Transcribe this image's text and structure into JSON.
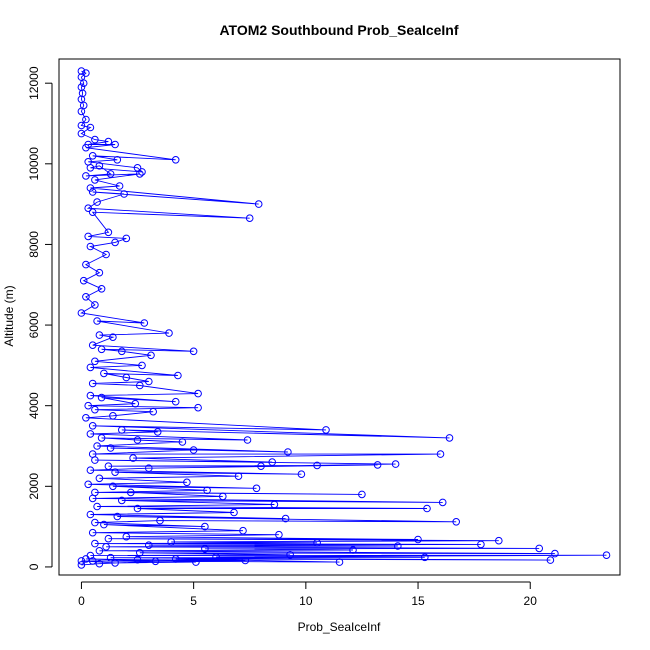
{
  "chart_data": {
    "type": "line",
    "title": "ATOM2 Southbound Prob_SeaIceInf",
    "xlabel": "Prob_SeaIceInf",
    "ylabel": "Altitude (m)",
    "xlim": [
      -1.0,
      24.0
    ],
    "ylim": [
      -200,
      12600
    ],
    "x_ticks": [
      0,
      5,
      10,
      15,
      20
    ],
    "y_ticks": [
      0,
      2000,
      4000,
      6000,
      8000,
      10000,
      12000
    ],
    "grid": false,
    "legend": "none",
    "marker": "open-circle",
    "series": [
      {
        "points": [
          [
            0.0,
            12300
          ],
          [
            0.2,
            12250
          ],
          [
            0.0,
            12150
          ],
          [
            0.1,
            12000
          ],
          [
            0.0,
            11900
          ],
          [
            0.05,
            11750
          ],
          [
            0.0,
            11600
          ],
          [
            0.1,
            11450
          ],
          [
            0.0,
            11300
          ],
          [
            0.2,
            11100
          ],
          [
            0.0,
            10950
          ],
          [
            0.4,
            10900
          ],
          [
            0.0,
            10750
          ],
          [
            0.6,
            10600
          ],
          [
            1.2,
            10550
          ],
          [
            0.3,
            10480
          ],
          [
            1.5,
            10480
          ],
          [
            0.2,
            10400
          ],
          [
            4.2,
            10100
          ],
          [
            0.5,
            10200
          ],
          [
            1.6,
            10100
          ],
          [
            0.3,
            10050
          ],
          [
            2.5,
            9900
          ],
          [
            2.7,
            9800
          ],
          [
            0.4,
            9900
          ],
          [
            0.8,
            9950
          ],
          [
            1.3,
            9750
          ],
          [
            0.2,
            9700
          ],
          [
            2.6,
            9750
          ],
          [
            0.6,
            9600
          ],
          [
            1.7,
            9450
          ],
          [
            0.4,
            9400
          ],
          [
            7.9,
            9000
          ],
          [
            0.5,
            9300
          ],
          [
            1.9,
            9250
          ],
          [
            0.7,
            9050
          ],
          [
            0.3,
            8900
          ],
          [
            7.5,
            8650
          ],
          [
            0.5,
            8800
          ],
          [
            1.2,
            8300
          ],
          [
            0.3,
            8200
          ],
          [
            2.0,
            8150
          ],
          [
            1.5,
            8050
          ],
          [
            0.4,
            7950
          ],
          [
            1.1,
            7750
          ],
          [
            0.2,
            7500
          ],
          [
            0.8,
            7300
          ],
          [
            0.1,
            7100
          ],
          [
            0.9,
            6900
          ],
          [
            0.2,
            6700
          ],
          [
            0.6,
            6500
          ],
          [
            0.0,
            6300
          ],
          [
            2.8,
            6050
          ],
          [
            0.7,
            6100
          ],
          [
            3.9,
            5800
          ],
          [
            0.8,
            5750
          ],
          [
            1.4,
            5700
          ],
          [
            0.5,
            5500
          ],
          [
            5.0,
            5350
          ],
          [
            0.9,
            5400
          ],
          [
            1.8,
            5350
          ],
          [
            3.1,
            5250
          ],
          [
            0.6,
            5100
          ],
          [
            2.7,
            5000
          ],
          [
            0.4,
            4950
          ],
          [
            4.3,
            4750
          ],
          [
            1.0,
            4800
          ],
          [
            2.0,
            4700
          ],
          [
            3.0,
            4600
          ],
          [
            0.5,
            4550
          ],
          [
            2.6,
            4500
          ],
          [
            5.2,
            4300
          ],
          [
            0.4,
            4250
          ],
          [
            4.2,
            4100
          ],
          [
            0.9,
            4200
          ],
          [
            2.4,
            4050
          ],
          [
            0.3,
            4000
          ],
          [
            5.2,
            3950
          ],
          [
            0.6,
            3900
          ],
          [
            3.2,
            3850
          ],
          [
            1.4,
            3750
          ],
          [
            0.2,
            3700
          ],
          [
            10.9,
            3400
          ],
          [
            0.5,
            3500
          ],
          [
            16.4,
            3200
          ],
          [
            1.8,
            3400
          ],
          [
            3.4,
            3350
          ],
          [
            0.4,
            3300
          ],
          [
            7.4,
            3150
          ],
          [
            0.9,
            3200
          ],
          [
            2.5,
            3150
          ],
          [
            4.5,
            3100
          ],
          [
            0.7,
            3000
          ],
          [
            9.2,
            2850
          ],
          [
            1.3,
            2950
          ],
          [
            5.0,
            2900
          ],
          [
            0.5,
            2800
          ],
          [
            16.0,
            2800
          ],
          [
            2.3,
            2700
          ],
          [
            8.5,
            2600
          ],
          [
            0.6,
            2650
          ],
          [
            14.0,
            2550
          ],
          [
            8.0,
            2500
          ],
          [
            1.2,
            2500
          ],
          [
            10.5,
            2520
          ],
          [
            13.2,
            2530
          ],
          [
            3.0,
            2450
          ],
          [
            0.4,
            2400
          ],
          [
            9.8,
            2300
          ],
          [
            1.5,
            2350
          ],
          [
            7.0,
            2250
          ],
          [
            0.8,
            2200
          ],
          [
            4.7,
            2100
          ],
          [
            0.3,
            2050
          ],
          [
            7.8,
            1950
          ],
          [
            1.4,
            2000
          ],
          [
            5.6,
            1900
          ],
          [
            0.6,
            1850
          ],
          [
            12.5,
            1800
          ],
          [
            2.2,
            1850
          ],
          [
            6.3,
            1750
          ],
          [
            0.5,
            1700
          ],
          [
            16.1,
            1600
          ],
          [
            1.8,
            1650
          ],
          [
            8.6,
            1550
          ],
          [
            0.7,
            1500
          ],
          [
            15.4,
            1450
          ],
          [
            2.5,
            1450
          ],
          [
            6.8,
            1350
          ],
          [
            0.4,
            1300
          ],
          [
            9.1,
            1200
          ],
          [
            1.6,
            1250
          ],
          [
            16.7,
            1120
          ],
          [
            3.5,
            1150
          ],
          [
            0.6,
            1100
          ],
          [
            5.5,
            1000
          ],
          [
            1.0,
            1050
          ],
          [
            7.2,
            900
          ],
          [
            0.5,
            850
          ],
          [
            8.8,
            800
          ],
          [
            2.0,
            750
          ],
          [
            15.0,
            680
          ],
          [
            1.2,
            700
          ],
          [
            18.6,
            650
          ],
          [
            4.0,
            620
          ],
          [
            10.5,
            600
          ],
          [
            0.6,
            580
          ],
          [
            17.8,
            560
          ],
          [
            3.0,
            540
          ],
          [
            14.1,
            520
          ],
          [
            1.1,
            500
          ],
          [
            20.4,
            460
          ],
          [
            5.5,
            450
          ],
          [
            12.1,
            420
          ],
          [
            0.8,
            400
          ],
          [
            21.1,
            330
          ],
          [
            2.6,
            350
          ],
          [
            9.3,
            300
          ],
          [
            0.4,
            280
          ],
          [
            23.4,
            290
          ],
          [
            6.0,
            250
          ],
          [
            15.3,
            240
          ],
          [
            1.3,
            230
          ],
          [
            20.9,
            170
          ],
          [
            4.2,
            200
          ],
          [
            11.5,
            120
          ],
          [
            0.5,
            150
          ],
          [
            7.3,
            160
          ],
          [
            2.5,
            180
          ],
          [
            0.2,
            200
          ],
          [
            5.1,
            120
          ],
          [
            1.5,
            100
          ],
          [
            0.0,
            150
          ],
          [
            3.3,
            140
          ],
          [
            0.8,
            80
          ],
          [
            0.0,
            50
          ]
        ]
      }
    ]
  }
}
